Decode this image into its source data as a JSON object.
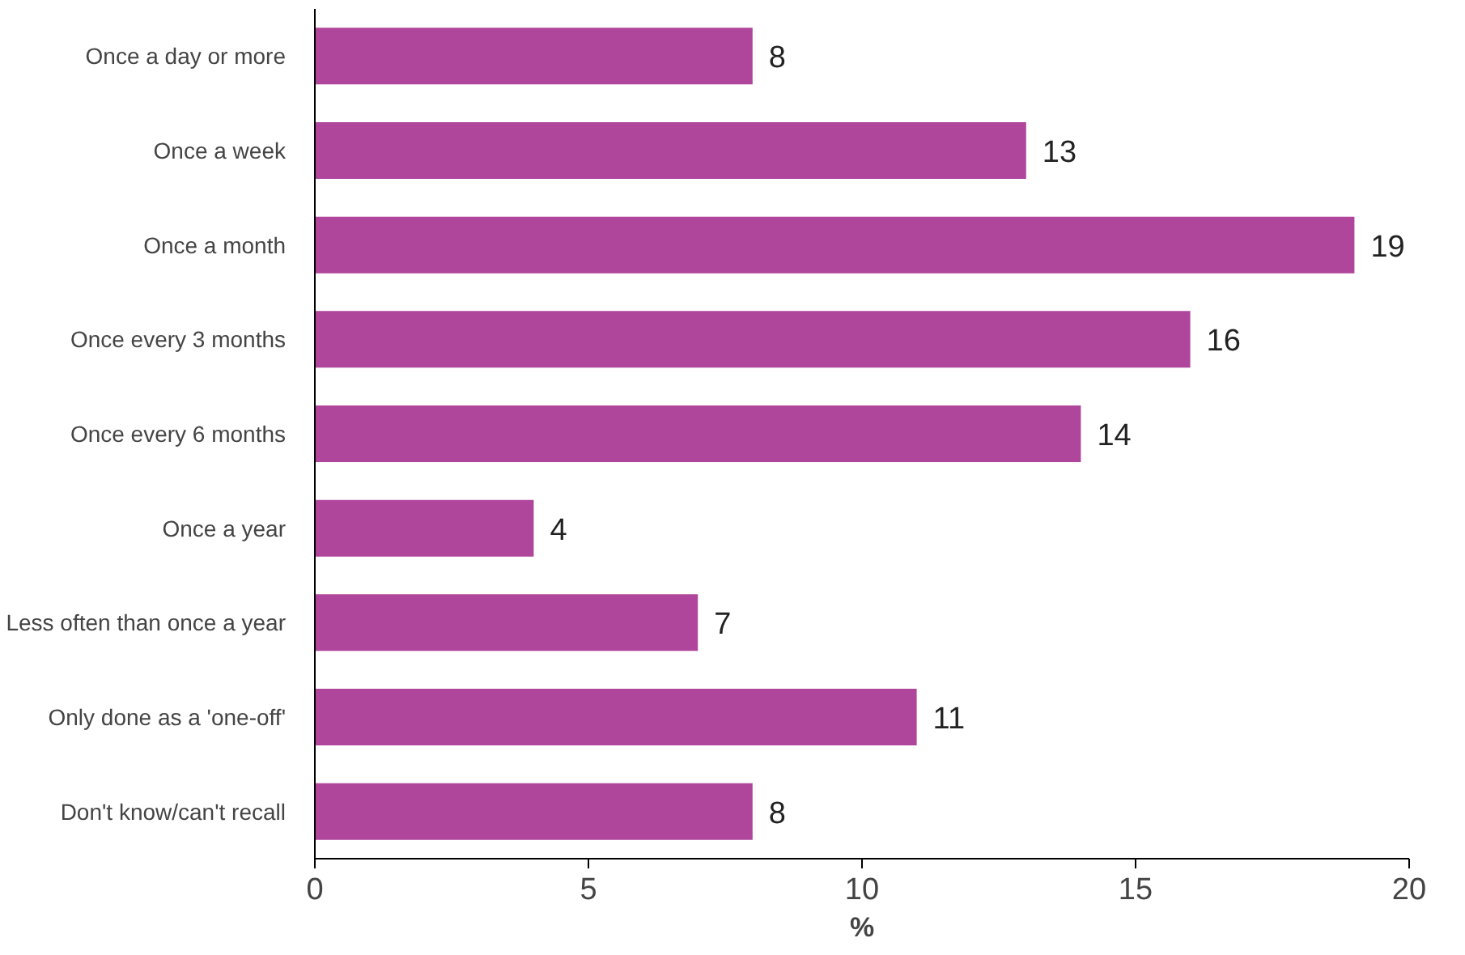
{
  "chart_data": {
    "type": "bar",
    "orientation": "horizontal",
    "categories": [
      "Once a day or more",
      "Once a week",
      "Once a month",
      "Once every 3 months",
      "Once every 6 months",
      "Once a year",
      "Less often than once a year",
      "Only done as a 'one-off'",
      "Don't know/can't recall"
    ],
    "values": [
      8,
      13,
      19,
      16,
      14,
      4,
      7,
      11,
      8
    ],
    "color": "#b0469c",
    "xlabel": "%",
    "xlim": [
      0,
      20
    ],
    "xticks": [
      0,
      5,
      10,
      15,
      20
    ],
    "grid": false,
    "data_labels": true
  }
}
